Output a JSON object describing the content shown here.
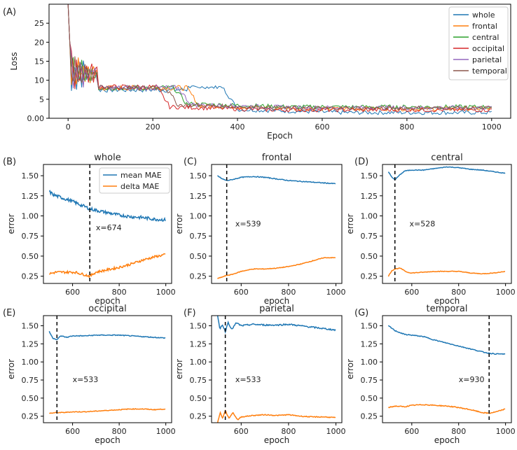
{
  "colors": {
    "whole": "#1f77b4",
    "frontal": "#ff7f0e",
    "central": "#2ca02c",
    "occipital": "#d62728",
    "parietal": "#9467bd",
    "temporal": "#8c564b",
    "mean": "#1f77b4",
    "delta": "#ff7f0e"
  },
  "chart_data": [
    {
      "id": "A",
      "panel_label": "(A)",
      "type": "line",
      "title": "",
      "xlabel": "Epoch",
      "ylabel": "Loss",
      "xlim": [
        -45,
        1045
      ],
      "ylim": [
        0,
        30
      ],
      "xticks": [
        0,
        200,
        400,
        600,
        800,
        1000
      ],
      "yticks": [
        0,
        5,
        10,
        15,
        20,
        25
      ],
      "legend": "top-right",
      "series": [
        {
          "name": "whole",
          "color_key": "whole",
          "transition": 370,
          "level_high": 7.5,
          "level_low": 1.5
        },
        {
          "name": "frontal",
          "color_key": "frontal",
          "transition": 280,
          "level_high": 8.0,
          "level_low": 2.5
        },
        {
          "name": "central",
          "color_key": "central",
          "transition": 250,
          "level_high": 8.0,
          "level_low": 3.0
        },
        {
          "name": "occipital",
          "color_key": "occipital",
          "transition": 210,
          "level_high": 8.2,
          "level_low": 2.2
        },
        {
          "name": "parietal",
          "color_key": "parietal",
          "transition": 260,
          "level_high": 8.0,
          "level_low": 2.8
        },
        {
          "name": "temporal",
          "color_key": "temporal",
          "transition": 230,
          "level_high": 8.0,
          "level_low": 2.7
        }
      ]
    },
    {
      "id": "B",
      "panel_label": "(B)",
      "type": "line",
      "title": "whole",
      "xlabel": "epoch",
      "ylabel": "error",
      "xlim": [
        475,
        1025
      ],
      "ylim": [
        0.16,
        1.64
      ],
      "xticks": [
        600,
        800,
        1000
      ],
      "yticks": [
        0.25,
        0.5,
        0.75,
        1.0,
        1.25,
        1.5
      ],
      "vline": 674,
      "annotation": "x=674",
      "annotation_at": [
        700,
        0.82
      ],
      "legend": "top-right",
      "series": [
        {
          "name": "mean MAE",
          "color_key": "mean",
          "x": [
            500,
            520,
            560,
            600,
            640,
            674,
            700,
            750,
            800,
            850,
            900,
            950,
            1000
          ],
          "y": [
            1.3,
            1.26,
            1.22,
            1.18,
            1.13,
            1.09,
            1.07,
            1.04,
            1.01,
            0.99,
            0.98,
            0.96,
            0.95
          ],
          "noise": 0.02
        },
        {
          "name": "delta MAE",
          "color_key": "delta",
          "x": [
            500,
            530,
            570,
            610,
            650,
            674,
            700,
            750,
            800,
            850,
            900,
            950,
            1000
          ],
          "y": [
            0.28,
            0.3,
            0.3,
            0.3,
            0.27,
            0.25,
            0.3,
            0.33,
            0.36,
            0.4,
            0.45,
            0.49,
            0.52
          ],
          "noise": 0.015
        }
      ]
    },
    {
      "id": "C",
      "panel_label": "(C)",
      "type": "line",
      "title": "frontal",
      "xlabel": "epoch",
      "ylabel": "error",
      "xlim": [
        475,
        1025
      ],
      "ylim": [
        0.16,
        1.64
      ],
      "xticks": [
        600,
        800,
        1000
      ],
      "yticks": [
        0.25,
        0.5,
        0.75,
        1.0,
        1.25,
        1.5
      ],
      "vline": 539,
      "annotation": "x=539",
      "annotation_at": [
        575,
        0.87
      ],
      "series": [
        {
          "name": "mean MAE",
          "color_key": "mean",
          "x": [
            500,
            520,
            539,
            560,
            600,
            650,
            700,
            750,
            800,
            850,
            900,
            950,
            1000
          ],
          "y": [
            1.5,
            1.46,
            1.44,
            1.45,
            1.48,
            1.49,
            1.48,
            1.46,
            1.44,
            1.43,
            1.42,
            1.41,
            1.4
          ],
          "noise": 0.005
        },
        {
          "name": "delta MAE",
          "color_key": "delta",
          "x": [
            500,
            520,
            539,
            560,
            600,
            650,
            700,
            750,
            800,
            850,
            900,
            950,
            1000
          ],
          "y": [
            0.22,
            0.24,
            0.26,
            0.27,
            0.31,
            0.34,
            0.34,
            0.35,
            0.37,
            0.4,
            0.44,
            0.48,
            0.48
          ],
          "noise": 0.004
        }
      ]
    },
    {
      "id": "D",
      "panel_label": "(D)",
      "type": "line",
      "title": "central",
      "xlabel": "epoch",
      "ylabel": "error",
      "xlim": [
        475,
        1025
      ],
      "ylim": [
        0.16,
        1.64
      ],
      "xticks": [
        600,
        800,
        1000
      ],
      "yticks": [
        0.25,
        0.5,
        0.75,
        1.0,
        1.25,
        1.5
      ],
      "vline": 528,
      "annotation": "x=528",
      "annotation_at": [
        590,
        0.87
      ],
      "series": [
        {
          "name": "mean MAE",
          "color_key": "mean",
          "x": [
            500,
            515,
            528,
            545,
            570,
            600,
            650,
            700,
            750,
            800,
            850,
            900,
            950,
            1000
          ],
          "y": [
            1.55,
            1.48,
            1.45,
            1.5,
            1.56,
            1.57,
            1.57,
            1.59,
            1.61,
            1.6,
            1.58,
            1.57,
            1.55,
            1.53
          ],
          "noise": 0.004
        },
        {
          "name": "delta MAE",
          "color_key": "delta",
          "x": [
            500,
            515,
            528,
            550,
            580,
            600,
            650,
            700,
            750,
            800,
            850,
            900,
            950,
            1000
          ],
          "y": [
            0.25,
            0.32,
            0.34,
            0.35,
            0.3,
            0.29,
            0.3,
            0.31,
            0.31,
            0.31,
            0.29,
            0.28,
            0.29,
            0.31
          ],
          "noise": 0.004
        }
      ]
    },
    {
      "id": "E",
      "panel_label": "(E)",
      "type": "line",
      "title": "occipital",
      "xlabel": "epoch",
      "ylabel": "error",
      "xlim": [
        475,
        1025
      ],
      "ylim": [
        0.16,
        1.64
      ],
      "xticks": [
        600,
        800,
        1000
      ],
      "yticks": [
        0.25,
        0.5,
        0.75,
        1.0,
        1.25,
        1.5
      ],
      "vline": 533,
      "annotation": "x=533",
      "annotation_at": [
        600,
        0.72
      ],
      "series": [
        {
          "name": "mean MAE",
          "color_key": "mean",
          "x": [
            500,
            515,
            533,
            550,
            575,
            600,
            650,
            700,
            750,
            800,
            850,
            900,
            950,
            1000
          ],
          "y": [
            1.42,
            1.33,
            1.31,
            1.36,
            1.34,
            1.36,
            1.36,
            1.37,
            1.37,
            1.37,
            1.36,
            1.35,
            1.34,
            1.33
          ],
          "noise": 0.006
        },
        {
          "name": "delta MAE",
          "color_key": "delta",
          "x": [
            500,
            533,
            560,
            600,
            650,
            700,
            750,
            800,
            850,
            900,
            950,
            1000
          ],
          "y": [
            0.29,
            0.3,
            0.3,
            0.31,
            0.31,
            0.32,
            0.33,
            0.34,
            0.35,
            0.35,
            0.34,
            0.35
          ],
          "noise": 0.005
        }
      ]
    },
    {
      "id": "F",
      "panel_label": "(F)",
      "type": "line",
      "title": "parietal",
      "xlabel": "epoch",
      "ylabel": "error",
      "xlim": [
        475,
        1025
      ],
      "ylim": [
        0.16,
        1.64
      ],
      "xticks": [
        600,
        800,
        1000
      ],
      "yticks": [
        0.25,
        0.5,
        0.75,
        1.0,
        1.25,
        1.5
      ],
      "vline": 533,
      "annotation": "x=533",
      "annotation_at": [
        575,
        0.72
      ],
      "series": [
        {
          "name": "mean MAE",
          "color_key": "mean",
          "x": [
            500,
            510,
            520,
            533,
            545,
            560,
            580,
            600,
            650,
            700,
            750,
            800,
            850,
            900,
            950,
            1000
          ],
          "y": [
            1.64,
            1.45,
            1.52,
            1.42,
            1.55,
            1.45,
            1.54,
            1.5,
            1.52,
            1.51,
            1.51,
            1.52,
            1.5,
            1.48,
            1.46,
            1.44
          ],
          "noise": 0.01
        },
        {
          "name": "delta MAE",
          "color_key": "delta",
          "x": [
            500,
            512,
            522,
            533,
            548,
            565,
            585,
            600,
            650,
            700,
            750,
            800,
            850,
            900,
            950,
            1000
          ],
          "y": [
            0.16,
            0.3,
            0.22,
            0.33,
            0.22,
            0.3,
            0.2,
            0.24,
            0.26,
            0.27,
            0.26,
            0.27,
            0.25,
            0.24,
            0.24,
            0.23
          ],
          "noise": 0.006
        }
      ]
    },
    {
      "id": "G",
      "panel_label": "(G)",
      "type": "line",
      "title": "temporal",
      "xlabel": "epoch",
      "ylabel": "error",
      "xlim": [
        475,
        1025
      ],
      "ylim": [
        0.16,
        1.64
      ],
      "xticks": [
        600,
        800,
        1000
      ],
      "yticks": [
        0.25,
        0.5,
        0.75,
        1.0,
        1.25,
        1.5
      ],
      "vline": 930,
      "annotation": "x=930",
      "annotation_at": [
        800,
        0.72
      ],
      "series": [
        {
          "name": "mean MAE",
          "color_key": "mean",
          "x": [
            500,
            530,
            570,
            600,
            650,
            700,
            750,
            800,
            850,
            900,
            930,
            960,
            1000
          ],
          "y": [
            1.5,
            1.43,
            1.38,
            1.37,
            1.35,
            1.3,
            1.26,
            1.22,
            1.18,
            1.14,
            1.12,
            1.11,
            1.11
          ],
          "noise": 0.006
        },
        {
          "name": "delta MAE",
          "color_key": "delta",
          "x": [
            500,
            530,
            570,
            600,
            650,
            700,
            750,
            800,
            850,
            900,
            930,
            960,
            1000
          ],
          "y": [
            0.37,
            0.39,
            0.38,
            0.4,
            0.41,
            0.4,
            0.39,
            0.37,
            0.34,
            0.3,
            0.29,
            0.31,
            0.35
          ],
          "noise": 0.006
        }
      ]
    }
  ]
}
